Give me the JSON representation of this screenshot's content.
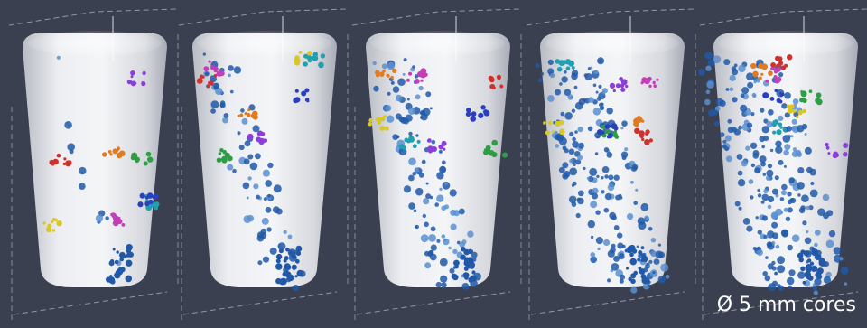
{
  "caption": "Ø 5 mm cores"
}
